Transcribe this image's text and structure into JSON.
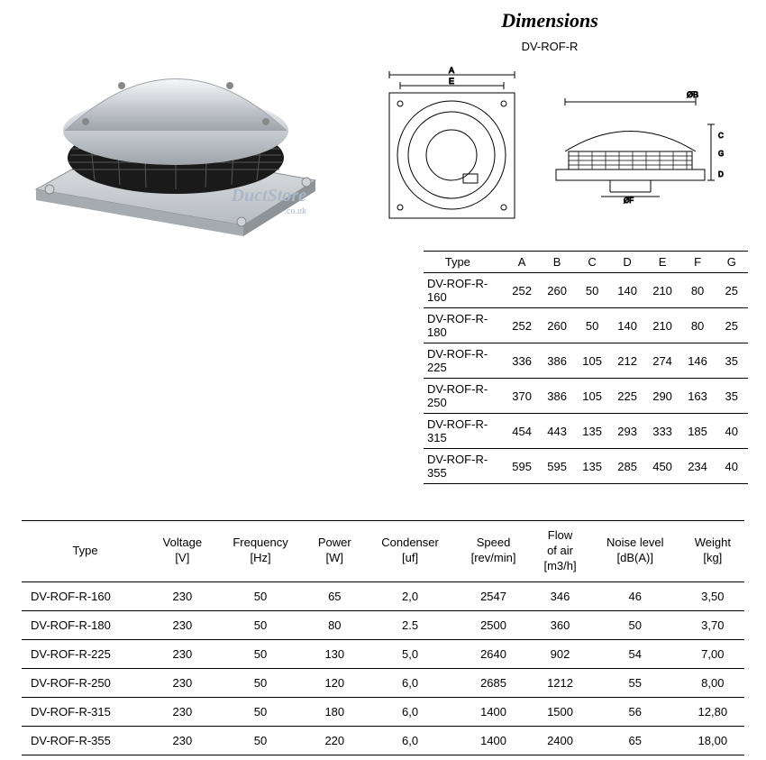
{
  "title": "Dimensions",
  "model": "DV-ROF-R",
  "watermark": {
    "brand": "DuctStore",
    "tld": ".co.uk"
  },
  "colors": {
    "text": "#000000",
    "bg": "#ffffff",
    "watermark": "#a9b8c9",
    "rule": "#000000"
  },
  "dimTable": {
    "columns": [
      "Type",
      "A",
      "B",
      "C",
      "D",
      "E",
      "F",
      "G"
    ],
    "rows": [
      [
        "DV-ROF-R-160",
        "252",
        "260",
        "50",
        "140",
        "210",
        "80",
        "25"
      ],
      [
        "DV-ROF-R-180",
        "252",
        "260",
        "50",
        "140",
        "210",
        "80",
        "25"
      ],
      [
        "DV-ROF-R-225",
        "336",
        "386",
        "105",
        "212",
        "274",
        "146",
        "35"
      ],
      [
        "DV-ROF-R-250",
        "370",
        "386",
        "105",
        "225",
        "290",
        "163",
        "35"
      ],
      [
        "DV-ROF-R-315",
        "454",
        "443",
        "135",
        "293",
        "333",
        "185",
        "40"
      ],
      [
        "DV-ROF-R-355",
        "595",
        "595",
        "135",
        "285",
        "450",
        "234",
        "40"
      ]
    ]
  },
  "specsTable": {
    "columns": [
      {
        "h1": "Type",
        "h2": ""
      },
      {
        "h1": "Voltage",
        "h2": "[V]"
      },
      {
        "h1": "Frequency",
        "h2": "[Hz]"
      },
      {
        "h1": "Power",
        "h2": "[W]"
      },
      {
        "h1": "Condenser",
        "h2": "[uf]"
      },
      {
        "h1": "Speed",
        "h2": "[rev/min]"
      },
      {
        "h1": "Flow of air",
        "h2": "[m3/h]"
      },
      {
        "h1": "Noise level",
        "h2": "[dB(A)]"
      },
      {
        "h1": "Weight",
        "h2": "[kg]"
      }
    ],
    "rows": [
      [
        "DV-ROF-R-160",
        "230",
        "50",
        "65",
        "2,0",
        "2547",
        "346",
        "46",
        "3,50"
      ],
      [
        "DV-ROF-R-180",
        "230",
        "50",
        "80",
        "2.5",
        "2500",
        "360",
        "50",
        "3,70"
      ],
      [
        "DV-ROF-R-225",
        "230",
        "50",
        "130",
        "5,0",
        "2640",
        "902",
        "54",
        "7,00"
      ],
      [
        "DV-ROF-R-250",
        "230",
        "50",
        "120",
        "6,0",
        "2685",
        "1212",
        "55",
        "8,00"
      ],
      [
        "DV-ROF-R-315",
        "230",
        "50",
        "180",
        "6,0",
        "1400",
        "1500",
        "56",
        "12,80"
      ],
      [
        "DV-ROF-R-355",
        "230",
        "50",
        "220",
        "6,0",
        "1400",
        "2400",
        "65",
        "18,00"
      ]
    ]
  },
  "drawingLabels": {
    "A": "A",
    "E": "E",
    "D": "D",
    "C": "C",
    "G": "G",
    "phiB": "ØB",
    "phiF": "ØF"
  }
}
